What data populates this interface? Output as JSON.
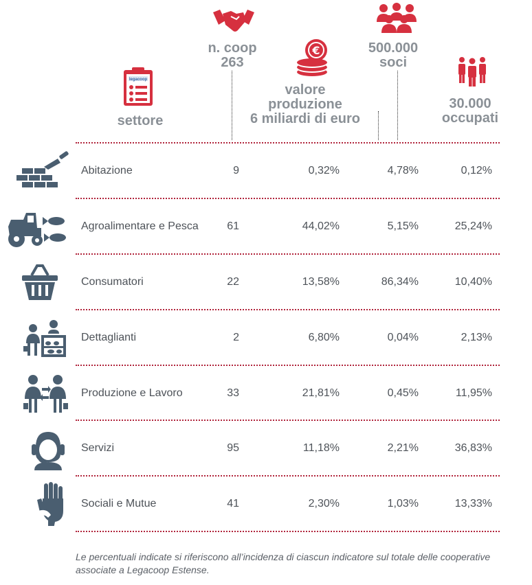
{
  "header": {
    "settore": "settore",
    "ncoop_label": "n. coop",
    "ncoop_total": "263",
    "valore_label_1": "valore",
    "valore_label_2": "produzione",
    "valore_total": "6 miliardi di euro",
    "soci_total": "500.000",
    "soci_label": "soci",
    "occupati_total": "30.000",
    "occupati_label": "occupati",
    "clipboard_logo": "legacoop"
  },
  "colors": {
    "accent_red": "#d6303f",
    "icon_slate": "#4a5e70",
    "header_grey": "#8a9096",
    "separator": "#b0233a"
  },
  "rows": [
    {
      "icon": "bricks-trowel-icon",
      "settore": "Abitazione",
      "ncoop": "9",
      "valore": "0,32%",
      "soci": "4,78%",
      "occupati": "0,12%"
    },
    {
      "icon": "tractor-fish-icon",
      "settore": "Agroalimentare e Pesca",
      "ncoop": "61",
      "valore": "44,02%",
      "soci": "5,15%",
      "occupati": "25,24%"
    },
    {
      "icon": "shopping-basket-icon",
      "settore": "Consumatori",
      "ncoop": "22",
      "valore": "13,58%",
      "soci": "86,34%",
      "occupati": "10,40%"
    },
    {
      "icon": "shop-counter-icon",
      "settore": "Dettaglianti",
      "ncoop": "2",
      "valore": "6,80%",
      "soci": "0,04%",
      "occupati": "2,13%"
    },
    {
      "icon": "workers-exchange-icon",
      "settore": "Produzione e Lavoro",
      "ncoop": "33",
      "valore": "21,81%",
      "soci": "0,45%",
      "occupati": "11,95%"
    },
    {
      "icon": "headset-operator-icon",
      "settore": "Servizi",
      "ncoop": "95",
      "valore": "11,18%",
      "soci": "2,21%",
      "occupati": "36,83%"
    },
    {
      "icon": "helping-hands-icon",
      "settore": "Sociali e Mutue",
      "ncoop": "41",
      "valore": "2,30%",
      "soci": "1,03%",
      "occupati": "13,33%"
    }
  ],
  "footnote": "Le percentuali indicate si riferiscono all’incidenza di ciascun indicatore sul totale delle cooperative associate a Legacoop Estense."
}
